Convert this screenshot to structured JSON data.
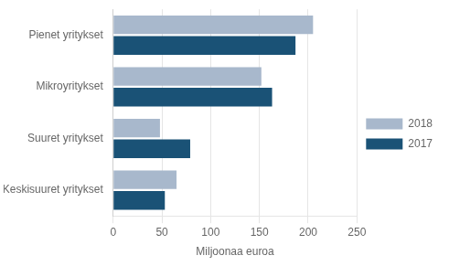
{
  "chart_data": {
    "type": "bar",
    "orientation": "horizontal",
    "categories": [
      "Pienet yritykset",
      "Mikroyritykset",
      "Suuret yritykset",
      "Keskisuuret yritykset"
    ],
    "series": [
      {
        "name": "2018",
        "color": "#a8b8cc",
        "values": [
          205,
          152,
          48,
          65
        ]
      },
      {
        "name": "2017",
        "color": "#1a5276",
        "values": [
          187,
          163,
          79,
          53
        ]
      }
    ],
    "xlabel": "Miljoonaa euroa",
    "xlim": [
      0,
      250
    ],
    "xticks": [
      0,
      50,
      100,
      150,
      200,
      250
    ],
    "grid": "x",
    "legend": "right"
  }
}
